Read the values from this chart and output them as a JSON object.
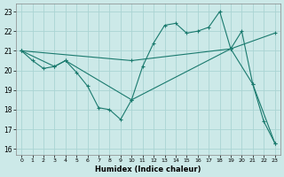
{
  "xlabel": "Humidex (Indice chaleur)",
  "bg_color": "#cce9e8",
  "grid_color": "#aad4d3",
  "line_color": "#1a7a6e",
  "xlim": [
    -0.5,
    23.5
  ],
  "ylim": [
    15.7,
    23.4
  ],
  "yticks": [
    16,
    17,
    18,
    19,
    20,
    21,
    22,
    23
  ],
  "xticks": [
    0,
    1,
    2,
    3,
    4,
    5,
    6,
    7,
    8,
    9,
    10,
    11,
    12,
    13,
    14,
    15,
    16,
    17,
    18,
    19,
    20,
    21,
    22,
    23
  ],
  "line1_x": [
    0,
    1,
    2,
    3,
    4,
    5,
    6,
    7,
    8,
    9,
    10,
    11,
    12,
    13,
    14,
    15,
    16,
    17,
    18,
    19,
    20,
    21,
    22,
    23
  ],
  "line1_y": [
    21.0,
    20.5,
    20.1,
    20.2,
    20.5,
    19.9,
    19.2,
    18.1,
    18.0,
    17.5,
    18.5,
    20.2,
    21.4,
    22.3,
    22.4,
    21.9,
    22.0,
    22.2,
    23.0,
    21.1,
    22.0,
    19.3,
    17.4,
    16.3
  ],
  "line2_x": [
    0,
    3,
    4,
    10,
    19,
    21,
    23
  ],
  "line2_y": [
    21.0,
    20.2,
    20.5,
    18.5,
    21.1,
    19.3,
    16.3
  ],
  "line3_x": [
    0,
    10,
    19,
    23
  ],
  "line3_y": [
    21.0,
    20.5,
    21.1,
    21.9
  ]
}
